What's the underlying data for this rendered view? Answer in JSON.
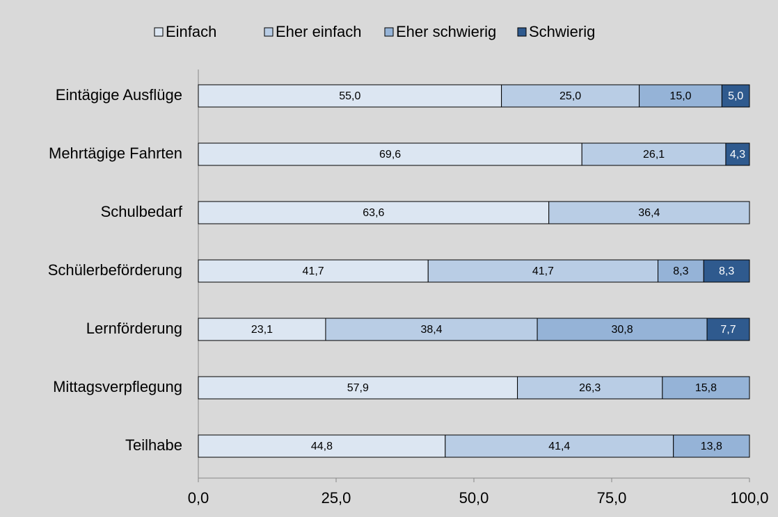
{
  "chart_data": {
    "type": "stacked_bar_horizontal",
    "categories": [
      "Eintägige Ausflüge",
      "Mehrtägige Fahrten",
      "Schulbedarf",
      "Schülerbeförderung",
      "Lernförderung",
      "Mittagsverpflegung",
      "Teilhabe"
    ],
    "series": [
      {
        "name": "Einfach",
        "color": "#dce6f2",
        "values": [
          55.0,
          69.6,
          63.6,
          41.7,
          23.1,
          57.9,
          44.8
        ],
        "value_labels": [
          "55,0",
          "69,6",
          "63,6",
          "41,7",
          "23,1",
          "57,9",
          "44,8"
        ]
      },
      {
        "name": "Eher einfach",
        "color": "#b9cde5",
        "values": [
          25.0,
          26.1,
          36.4,
          41.7,
          38.4,
          26.3,
          41.4
        ],
        "value_labels": [
          "25,0",
          "26,1",
          "36,4",
          "41,7",
          "38,4",
          "26,3",
          "41,4"
        ]
      },
      {
        "name": "Eher schwierig",
        "color": "#95b3d7",
        "values": [
          15.0,
          null,
          null,
          8.3,
          30.8,
          15.8,
          13.8
        ],
        "value_labels": [
          "15,0",
          null,
          null,
          "8,3",
          "30,8",
          "15,8",
          "13,8"
        ]
      },
      {
        "name": "Schwierig",
        "color": "#2f5a8e",
        "values": [
          5.0,
          4.3,
          null,
          8.3,
          7.7,
          null,
          null
        ],
        "value_labels": [
          "5,0",
          "4,3",
          null,
          "8,3",
          "7,7",
          null,
          null
        ]
      }
    ],
    "xlim": [
      0,
      100
    ],
    "xticks": [
      {
        "value": 0,
        "label": "0,0"
      },
      {
        "value": 25,
        "label": "25,0"
      },
      {
        "value": 50,
        "label": "50,0"
      },
      {
        "value": 75,
        "label": "75,0"
      },
      {
        "value": 100,
        "label": "100,0"
      }
    ],
    "legend": "top"
  }
}
